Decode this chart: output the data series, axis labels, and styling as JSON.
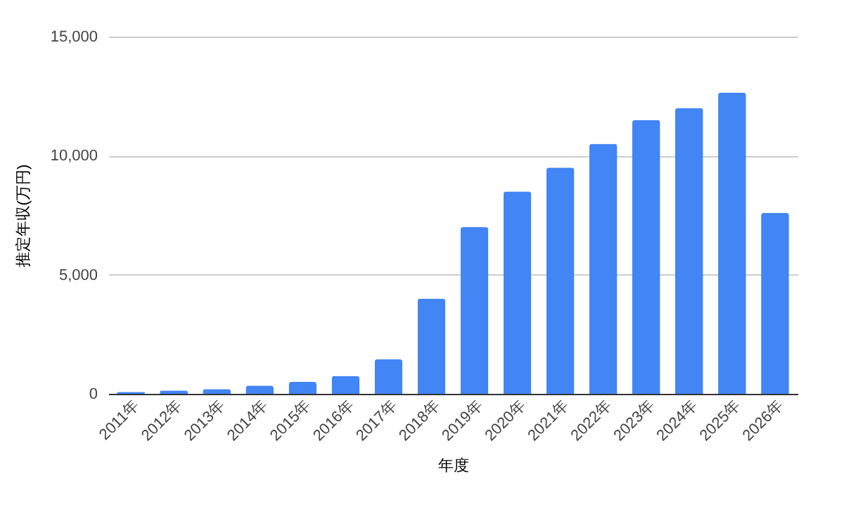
{
  "chart_data": {
    "type": "bar",
    "xlabel": "年度",
    "ylabel": "推定年収(万円)",
    "categories": [
      "2011年",
      "2012年",
      "2013年",
      "2014年",
      "2015年",
      "2016年",
      "2017年",
      "2018年",
      "2019年",
      "2020年",
      "2021年",
      "2022年",
      "2023年",
      "2024年",
      "2025年",
      "2026年"
    ],
    "values": [
      80,
      140,
      200,
      350,
      500,
      750,
      1450,
      4000,
      7000,
      8500,
      9500,
      10500,
      11500,
      12000,
      12650,
      7600
    ],
    "color": "#4285f4",
    "ylim": [
      0,
      15000
    ],
    "yticks": [
      0,
      {
        "value": 5000,
        "label": "5,000"
      },
      {
        "value": 10000,
        "label": "10,000"
      },
      {
        "value": 15000,
        "label": "15,000"
      }
    ],
    "grid": "y"
  }
}
